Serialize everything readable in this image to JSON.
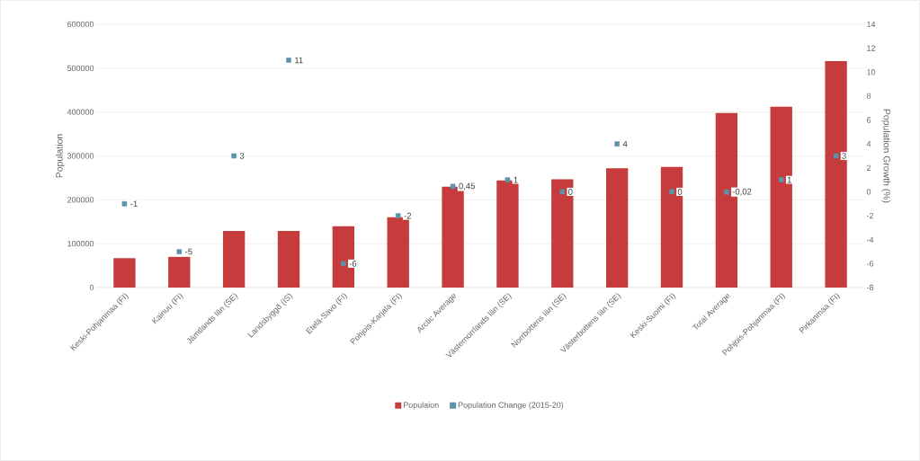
{
  "chart_data": {
    "type": "bar",
    "categories": [
      "Keski-Pohjanmaa (FI)",
      "Kainuu (FI)",
      "Jämtlands län (SE)",
      "Landsbyggð (IS)",
      "Etelä-Savo (FI)",
      "Pohjois-Karjala (FI)",
      "Arctic Average",
      "Västernorrlands län (SE)",
      "Norrbottens län (SE)",
      "Västerbottens län (SE)",
      "Keski-Suomi (FI)",
      "Total Average",
      "Pohjois-Pohjanmaa (FI)",
      "Pirkanmaa (FI)"
    ],
    "series": [
      {
        "name": "Populaion",
        "color": "#c63b3b",
        "values": [
          67000,
          70000,
          129000,
          129000,
          140000,
          160000,
          230000,
          244000,
          247000,
          272000,
          275000,
          398000,
          412000,
          516000
        ]
      },
      {
        "name": "Population Change (2015-20)",
        "type": "scatter",
        "axis": "y2",
        "color": "#5b93aa",
        "values": [
          -1,
          -5,
          3,
          11,
          -6,
          -2,
          0.45,
          1,
          0,
          4,
          0,
          -0.02,
          1,
          3
        ],
        "value_labels": [
          "-1",
          "-5",
          "3",
          "11",
          "-6",
          "-2",
          "0,45",
          "1",
          "0",
          "4",
          "0",
          "-0,02",
          "1",
          "3"
        ]
      }
    ],
    "ylabel": "Population",
    "y2label": "Population Growth (%)",
    "ylim": [
      0,
      600000
    ],
    "yticks": [
      0,
      100000,
      200000,
      300000,
      400000,
      500000,
      600000
    ],
    "y2lim": [
      -8,
      14
    ],
    "y2ticks": [
      -8,
      -6,
      -4,
      -2,
      0,
      2,
      4,
      6,
      8,
      10,
      12,
      14
    ],
    "grid": "y",
    "legend": "bottom",
    "marker": "square"
  }
}
